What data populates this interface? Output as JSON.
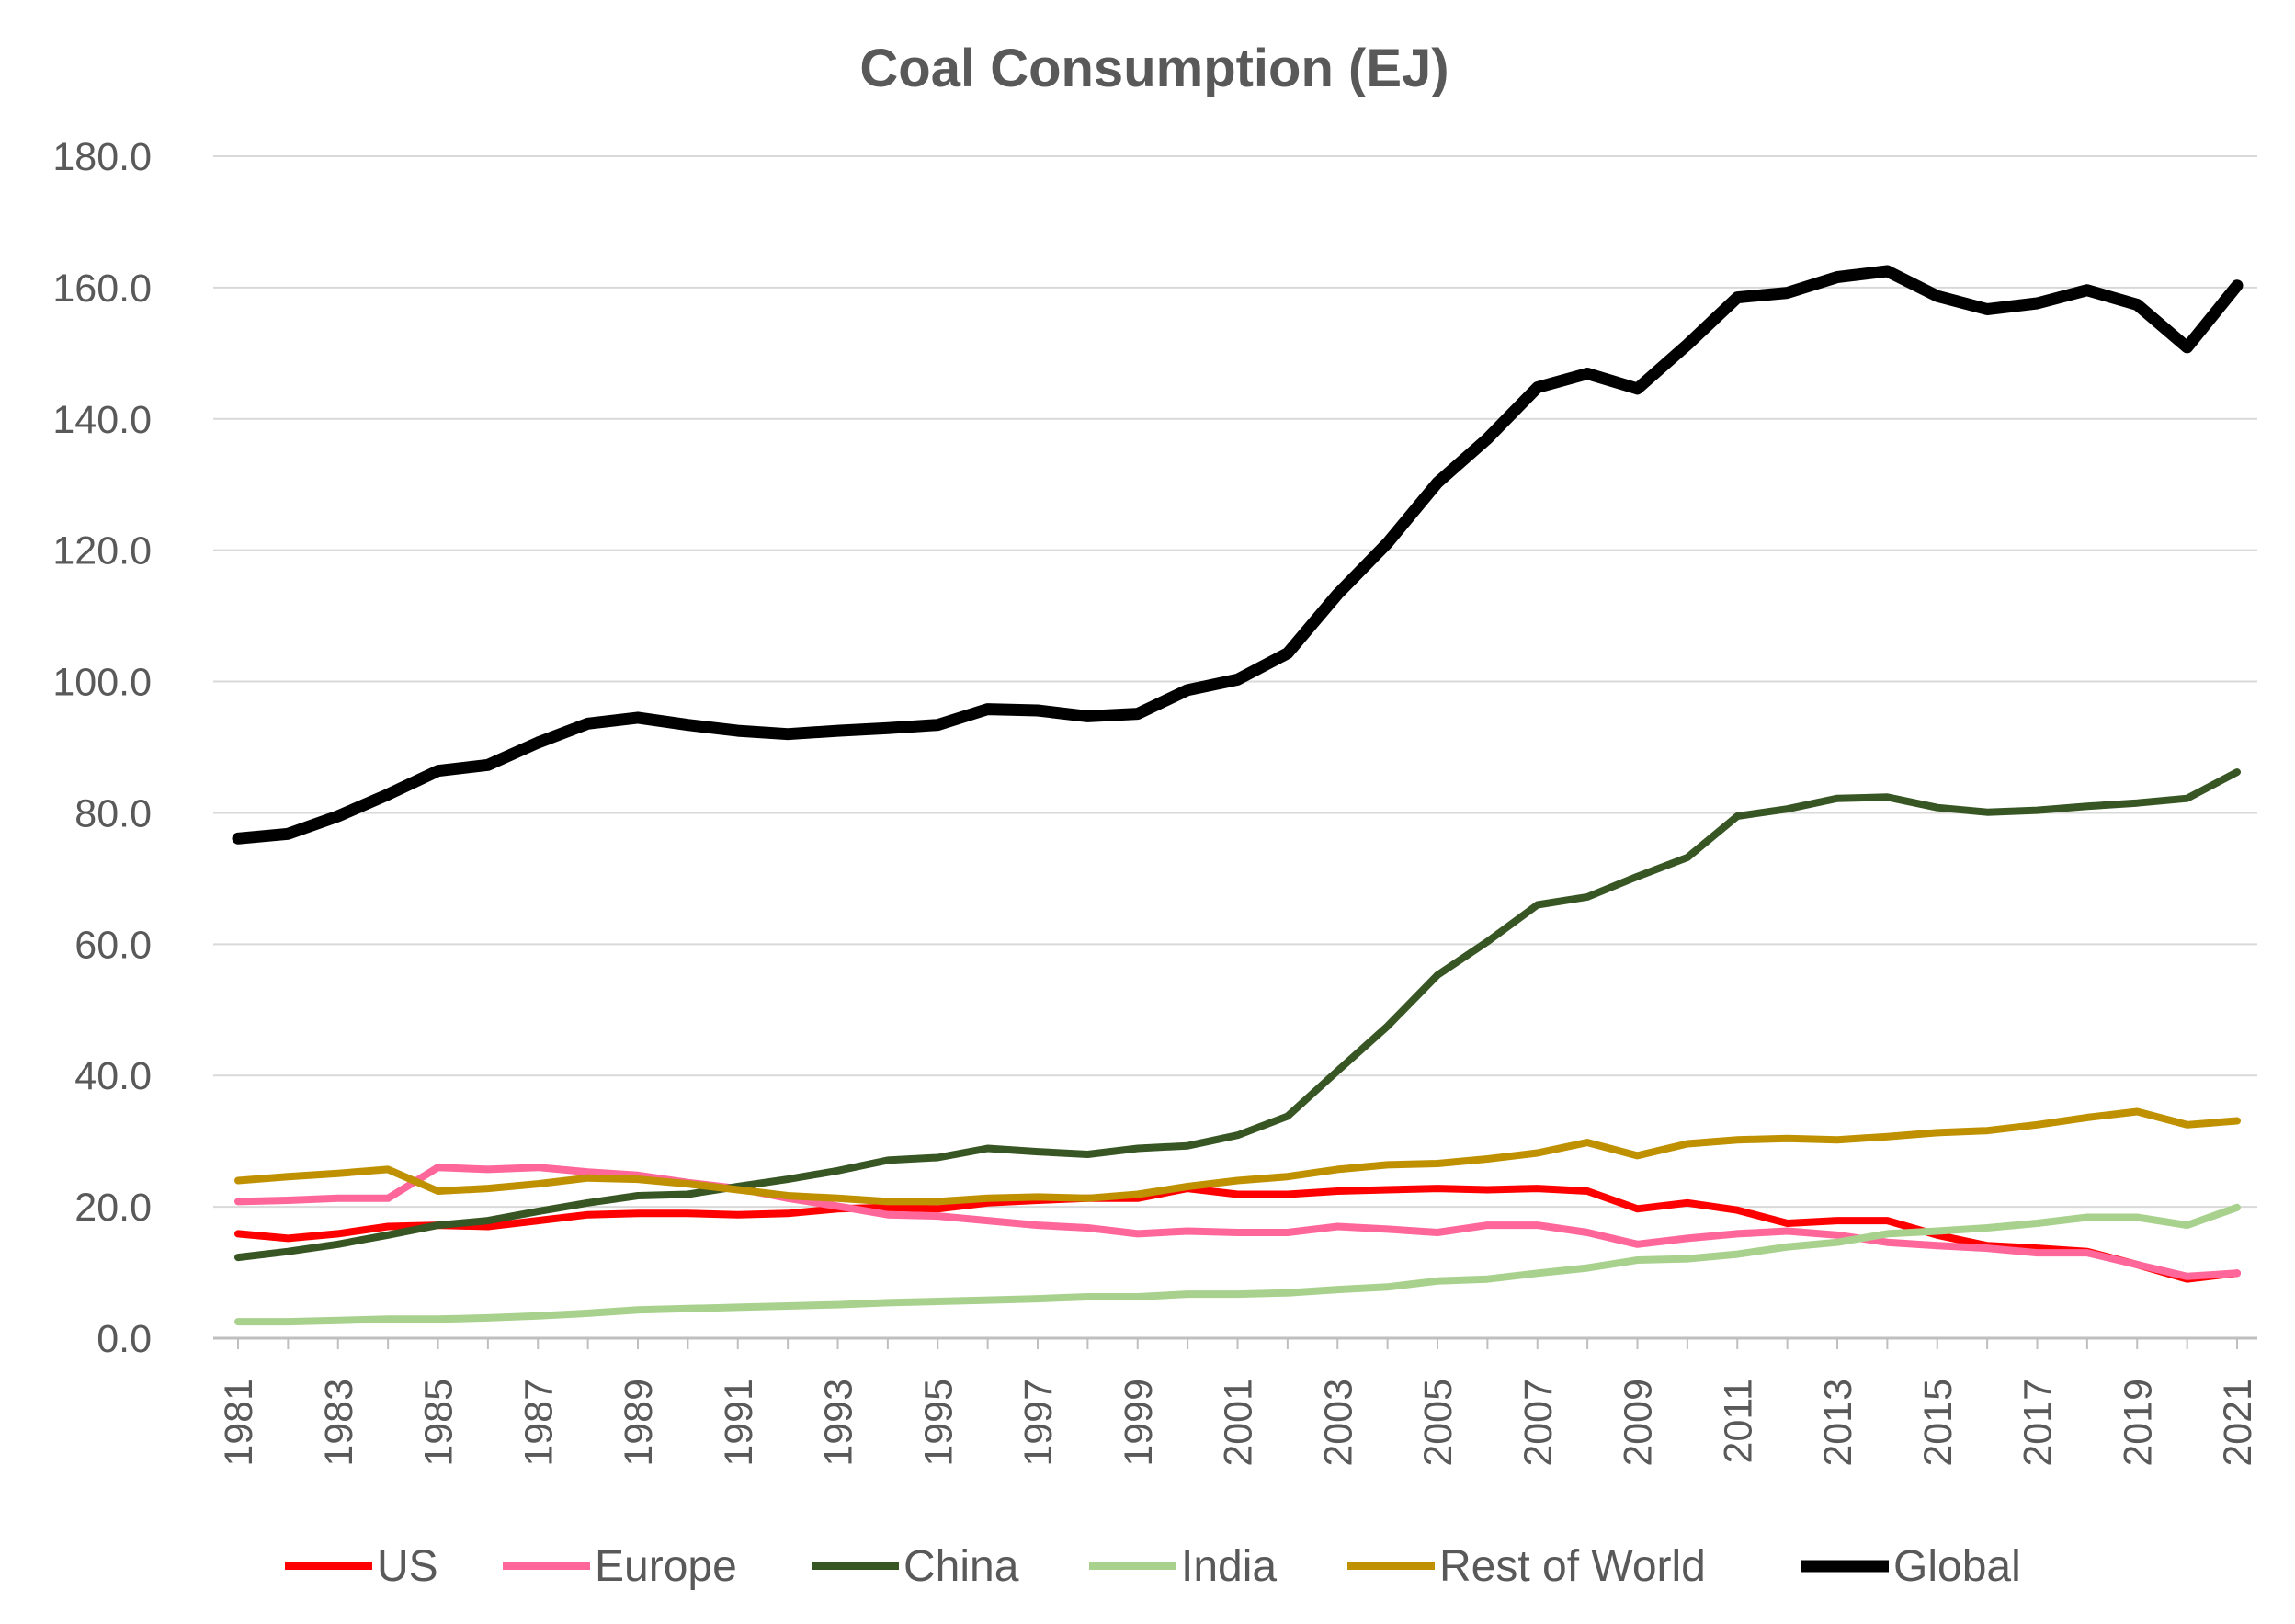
{
  "chart_data": {
    "type": "line",
    "title": "Coal Consumption (EJ)",
    "xlabel": "",
    "ylabel": "",
    "ylim": [
      0,
      180
    ],
    "y_ticks": [
      "0.0",
      "20.0",
      "40.0",
      "60.0",
      "80.0",
      "100.0",
      "120.0",
      "140.0",
      "160.0",
      "180.0"
    ],
    "x_tick_labels": [
      "1981",
      "1983",
      "1985",
      "1987",
      "1989",
      "1991",
      "1993",
      "1995",
      "1997",
      "1999",
      "2001",
      "2003",
      "2005",
      "2007",
      "2009",
      "2011",
      "2013",
      "2015",
      "2017",
      "2019",
      "2021"
    ],
    "grid": true,
    "legend_position": "bottom",
    "x": [
      1981,
      1982,
      1983,
      1984,
      1985,
      1986,
      1987,
      1988,
      1989,
      1990,
      1991,
      1992,
      1993,
      1994,
      1995,
      1996,
      1997,
      1998,
      1999,
      2000,
      2001,
      2002,
      2003,
      2004,
      2005,
      2006,
      2007,
      2008,
      2009,
      2010,
      2011,
      2012,
      2013,
      2014,
      2015,
      2016,
      2017,
      2018,
      2019,
      2020,
      2021
    ],
    "series": [
      {
        "name": "US",
        "color": "#ff0000",
        "width": 8,
        "values": [
          15.9,
          15.2,
          15.9,
          17.0,
          17.2,
          17.0,
          17.9,
          18.8,
          19.0,
          19.0,
          18.8,
          19.0,
          19.7,
          19.9,
          19.7,
          20.6,
          21.0,
          21.3,
          21.3,
          22.8,
          21.9,
          21.9,
          22.4,
          22.6,
          22.8,
          22.6,
          22.8,
          22.4,
          19.7,
          20.6,
          19.5,
          17.5,
          17.9,
          17.9,
          15.7,
          14.1,
          13.7,
          13.2,
          11.2,
          9.0,
          9.9
        ]
      },
      {
        "name": "Europe",
        "color": "#ff6699",
        "width": 8,
        "values": [
          20.8,
          21.0,
          21.3,
          21.3,
          26.0,
          25.7,
          26.0,
          25.3,
          24.8,
          23.7,
          22.8,
          21.3,
          20.1,
          18.8,
          18.6,
          17.9,
          17.2,
          16.8,
          15.9,
          16.3,
          16.1,
          16.1,
          17.0,
          16.6,
          16.1,
          17.2,
          17.2,
          16.1,
          14.3,
          15.2,
          15.9,
          16.3,
          15.7,
          14.6,
          14.1,
          13.7,
          13.0,
          13.0,
          11.2,
          9.4,
          9.9
        ]
      },
      {
        "name": "China",
        "color": "#375623",
        "width": 8,
        "values": [
          12.3,
          13.2,
          14.3,
          15.7,
          17.2,
          17.9,
          19.3,
          20.6,
          21.7,
          21.9,
          23.1,
          24.2,
          25.5,
          27.1,
          27.5,
          28.9,
          28.4,
          28.0,
          28.9,
          29.3,
          30.9,
          33.8,
          40.7,
          47.5,
          55.3,
          60.4,
          66.0,
          67.2,
          70.3,
          73.2,
          79.5,
          80.6,
          82.2,
          82.4,
          80.8,
          80.1,
          80.4,
          81.0,
          81.5,
          82.2,
          86.2
        ]
      },
      {
        "name": "India",
        "color": "#a9d18e",
        "width": 8,
        "values": [
          2.5,
          2.5,
          2.7,
          2.9,
          2.9,
          3.1,
          3.4,
          3.8,
          4.3,
          4.5,
          4.7,
          4.9,
          5.1,
          5.4,
          5.6,
          5.8,
          6.0,
          6.3,
          6.3,
          6.7,
          6.7,
          6.9,
          7.4,
          7.8,
          8.7,
          9.0,
          9.9,
          10.7,
          11.9,
          12.1,
          12.8,
          13.9,
          14.6,
          15.9,
          16.3,
          16.8,
          17.5,
          18.4,
          18.4,
          17.2,
          19.9
        ]
      },
      {
        "name": "Rest of World",
        "color": "#bf9000",
        "width": 8,
        "values": [
          24.0,
          24.6,
          25.1,
          25.7,
          22.4,
          22.8,
          23.5,
          24.4,
          24.2,
          23.5,
          22.6,
          21.7,
          21.3,
          20.8,
          20.8,
          21.3,
          21.5,
          21.3,
          21.9,
          23.1,
          24.0,
          24.6,
          25.7,
          26.4,
          26.6,
          27.3,
          28.2,
          29.8,
          27.8,
          29.6,
          30.2,
          30.4,
          30.2,
          30.7,
          31.3,
          31.6,
          32.5,
          33.6,
          34.5,
          32.5,
          33.1
        ]
      },
      {
        "name": "Global",
        "color": "#000000",
        "width": 13,
        "values": [
          76.1,
          76.8,
          79.5,
          82.8,
          86.4,
          87.3,
          90.7,
          93.6,
          94.5,
          93.4,
          92.5,
          92.0,
          92.5,
          92.9,
          93.4,
          95.8,
          95.6,
          94.7,
          95.1,
          98.7,
          100.3,
          104.3,
          113.3,
          121.1,
          130.3,
          137.0,
          144.8,
          146.9,
          144.6,
          151.3,
          158.5,
          159.2,
          161.6,
          162.5,
          158.7,
          156.7,
          157.6,
          159.6,
          157.4,
          150.9,
          160.3
        ]
      }
    ]
  }
}
